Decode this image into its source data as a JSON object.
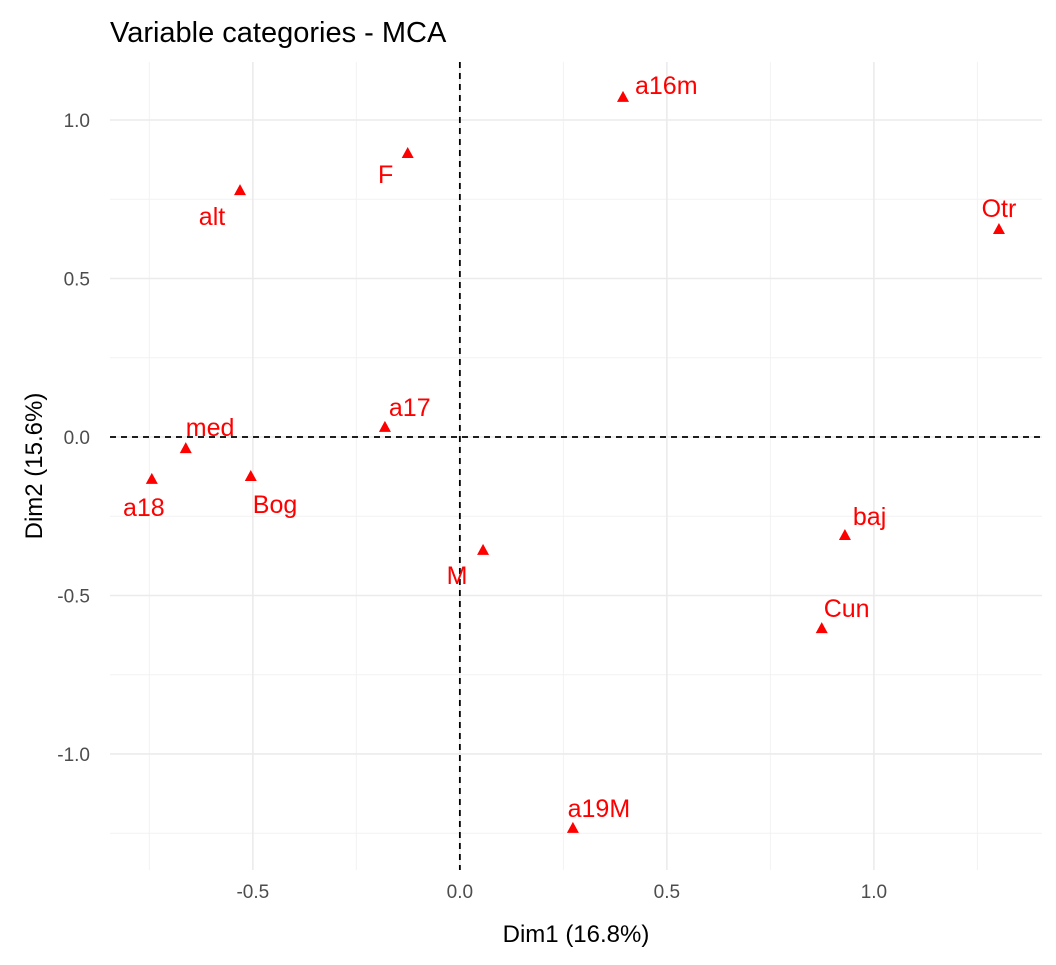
{
  "chart_data": {
    "type": "scatter",
    "title": "Variable categories - MCA",
    "xlabel": "Dim1 (16.8%)",
    "ylabel": "Dim2 (15.6%)",
    "xlim": [
      -0.845,
      1.406
    ],
    "ylim": [
      -1.366,
      1.183
    ],
    "xticks": [
      -0.5,
      0.0,
      0.5,
      1.0
    ],
    "xtick_labels": [
      "-0.5",
      "0.0",
      "0.5",
      "1.0"
    ],
    "yticks": [
      -1.0,
      -0.5,
      0.0,
      0.5,
      1.0
    ],
    "ytick_labels": [
      "-1.0",
      "-0.5",
      "0.0",
      "0.5",
      "1.0"
    ],
    "grid": true,
    "reference_lines": {
      "x": 0,
      "y": 0
    },
    "point_color": "#FF0000",
    "points": [
      {
        "label": "a16m",
        "x": 0.394,
        "y": 1.073
      },
      {
        "label": "F",
        "x": -0.126,
        "y": 0.896
      },
      {
        "label": "alt",
        "x": -0.531,
        "y": 0.779
      },
      {
        "label": "Otr",
        "x": 1.302,
        "y": 0.656
      },
      {
        "label": "a17",
        "x": -0.181,
        "y": 0.032
      },
      {
        "label": "med",
        "x": -0.662,
        "y": -0.035
      },
      {
        "label": "a18",
        "x": -0.744,
        "y": -0.132
      },
      {
        "label": "Bog",
        "x": -0.505,
        "y": -0.123
      },
      {
        "label": "M",
        "x": 0.056,
        "y": -0.356
      },
      {
        "label": "baj",
        "x": 0.93,
        "y": -0.309
      },
      {
        "label": "Cun",
        "x": 0.874,
        "y": -0.603
      },
      {
        "label": "a19M",
        "x": 0.273,
        "y": -1.233
      }
    ]
  }
}
